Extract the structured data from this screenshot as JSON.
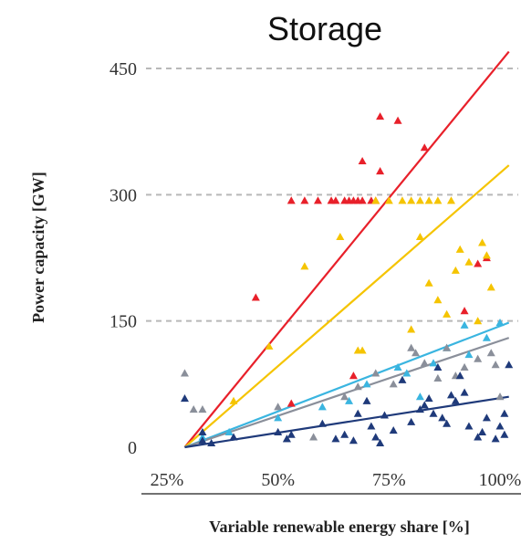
{
  "chart_data": {
    "type": "scatter",
    "title": "Storage",
    "xlabel": "Variable renewable energy share [%]",
    "ylabel": "Power capacity [GW]",
    "xlim": [
      25,
      102
    ],
    "ylim": [
      0,
      470
    ],
    "x_ticks": [
      25,
      50,
      75,
      100
    ],
    "x_tick_labels": [
      "25%",
      "50%",
      "75%",
      "100%"
    ],
    "y_ticks": [
      0,
      150,
      300,
      450
    ],
    "y_tick_labels": [
      "0",
      "150",
      "300",
      "450"
    ],
    "grid": "horizontal dashed at 150, 300, 450",
    "colors": {
      "red": "#e8202a",
      "yellow": "#f5c400",
      "lightblue": "#3ab5e0",
      "grey": "#8a8f9a",
      "navy": "#1f3a7a"
    },
    "series": [
      {
        "color_key": "red",
        "trend": [
          [
            29,
            0
          ],
          [
            102,
            470
          ]
        ],
        "points": [
          [
            45,
            178
          ],
          [
            62,
            293
          ],
          [
            63,
            293
          ],
          [
            65,
            293
          ],
          [
            66,
            293
          ],
          [
            67,
            293
          ],
          [
            68,
            293
          ],
          [
            69,
            293
          ],
          [
            71,
            293
          ],
          [
            72,
            293
          ],
          [
            59,
            293
          ],
          [
            56,
            293
          ],
          [
            53,
            293
          ],
          [
            73,
            393
          ],
          [
            77,
            388
          ],
          [
            69,
            340
          ],
          [
            73,
            328
          ],
          [
            83,
            356
          ],
          [
            97,
            225
          ],
          [
            95,
            218
          ],
          [
            92,
            162
          ],
          [
            67,
            85
          ],
          [
            53,
            52
          ]
        ]
      },
      {
        "color_key": "yellow",
        "trend": [
          [
            29,
            0
          ],
          [
            102,
            335
          ]
        ],
        "points": [
          [
            40,
            55
          ],
          [
            48,
            120
          ],
          [
            56,
            215
          ],
          [
            64,
            250
          ],
          [
            68,
            115
          ],
          [
            69,
            115
          ],
          [
            72,
            293
          ],
          [
            75,
            293
          ],
          [
            78,
            293
          ],
          [
            80,
            293
          ],
          [
            82,
            293
          ],
          [
            84,
            293
          ],
          [
            86,
            293
          ],
          [
            89,
            293
          ],
          [
            82,
            250
          ],
          [
            84,
            195
          ],
          [
            86,
            175
          ],
          [
            88,
            158
          ],
          [
            90,
            210
          ],
          [
            91,
            235
          ],
          [
            93,
            220
          ],
          [
            96,
            243
          ],
          [
            97,
            228
          ],
          [
            98,
            190
          ],
          [
            95,
            150
          ],
          [
            80,
            140
          ]
        ]
      },
      {
        "color_key": "lightblue",
        "trend": [
          [
            29,
            0
          ],
          [
            102,
            148
          ]
        ],
        "points": [
          [
            33,
            12
          ],
          [
            39,
            18
          ],
          [
            50,
            35
          ],
          [
            60,
            48
          ],
          [
            66,
            55
          ],
          [
            70,
            75
          ],
          [
            77,
            95
          ],
          [
            82,
            60
          ],
          [
            85,
            100
          ],
          [
            88,
            118
          ],
          [
            92,
            145
          ],
          [
            97,
            130
          ],
          [
            100,
            148
          ],
          [
            93,
            110
          ],
          [
            79,
            88
          ]
        ]
      },
      {
        "color_key": "grey",
        "trend": [
          [
            29,
            0
          ],
          [
            102,
            130
          ]
        ],
        "points": [
          [
            29,
            88
          ],
          [
            31,
            45
          ],
          [
            33,
            45
          ],
          [
            50,
            48
          ],
          [
            52,
            10
          ],
          [
            58,
            12
          ],
          [
            65,
            60
          ],
          [
            68,
            72
          ],
          [
            72,
            88
          ],
          [
            76,
            75
          ],
          [
            80,
            118
          ],
          [
            81,
            112
          ],
          [
            83,
            100
          ],
          [
            86,
            82
          ],
          [
            88,
            118
          ],
          [
            90,
            85
          ],
          [
            92,
            95
          ],
          [
            95,
            105
          ],
          [
            98,
            112
          ],
          [
            99,
            98
          ],
          [
            100,
            60
          ]
        ]
      },
      {
        "color_key": "navy",
        "trend": [
          [
            29,
            0
          ],
          [
            102,
            60
          ]
        ],
        "points": [
          [
            29,
            58
          ],
          [
            33,
            18
          ],
          [
            33,
            8
          ],
          [
            35,
            5
          ],
          [
            40,
            12
          ],
          [
            50,
            18
          ],
          [
            52,
            10
          ],
          [
            53,
            15
          ],
          [
            60,
            28
          ],
          [
            63,
            10
          ],
          [
            65,
            15
          ],
          [
            67,
            8
          ],
          [
            68,
            40
          ],
          [
            70,
            55
          ],
          [
            71,
            25
          ],
          [
            72,
            12
          ],
          [
            73,
            5
          ],
          [
            74,
            38
          ],
          [
            76,
            20
          ],
          [
            78,
            80
          ],
          [
            80,
            30
          ],
          [
            82,
            45
          ],
          [
            83,
            50
          ],
          [
            84,
            58
          ],
          [
            85,
            40
          ],
          [
            86,
            95
          ],
          [
            87,
            35
          ],
          [
            88,
            28
          ],
          [
            89,
            62
          ],
          [
            90,
            55
          ],
          [
            91,
            85
          ],
          [
            92,
            65
          ],
          [
            93,
            25
          ],
          [
            95,
            12
          ],
          [
            96,
            18
          ],
          [
            97,
            35
          ],
          [
            99,
            10
          ],
          [
            100,
            25
          ],
          [
            101,
            40
          ],
          [
            101,
            15
          ],
          [
            102,
            98
          ]
        ]
      }
    ]
  }
}
